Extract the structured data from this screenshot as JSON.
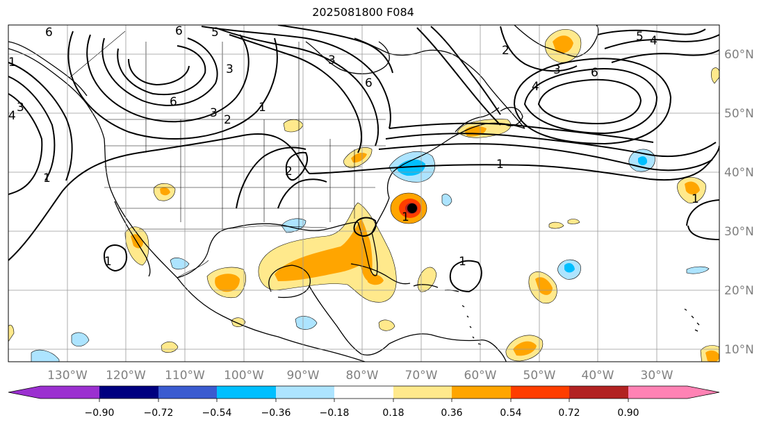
{
  "title": "2025081800 F084",
  "map": {
    "lon_labels": [
      "130°W",
      "120°W",
      "110°W",
      "100°W",
      "90°W",
      "80°W",
      "70°W",
      "60°W",
      "50°W",
      "40°W",
      "30°W"
    ],
    "lat_labels": [
      "60°N",
      "50°N",
      "40°N",
      "30°N",
      "20°N",
      "10°N"
    ],
    "contour_labels": [
      "6",
      "6",
      "5",
      "3",
      "6",
      "3",
      "2",
      "1",
      "6",
      "2",
      "3",
      "4",
      "6",
      "5",
      "4",
      "1",
      "1",
      "1",
      "2",
      "1",
      "1",
      "1",
      "4",
      "3",
      "3",
      "1"
    ]
  },
  "colorbar": {
    "ticks": [
      "−0.90",
      "−0.72",
      "−0.54",
      "−0.36",
      "−0.18",
      "0.18",
      "0.36",
      "0.54",
      "0.72",
      "0.90"
    ],
    "colors": {
      "under": "#9b30d0",
      "neg090": "#00007f",
      "neg072": "#3a5bd0",
      "neg054": "#00bfff",
      "neg036": "#ade4ff",
      "neutral": "#ffffff",
      "pos018": "#ffe98c",
      "pos036": "#ffa500",
      "pos054": "#ff3d00",
      "pos072": "#b22222",
      "over": "#ff82b4"
    }
  }
}
